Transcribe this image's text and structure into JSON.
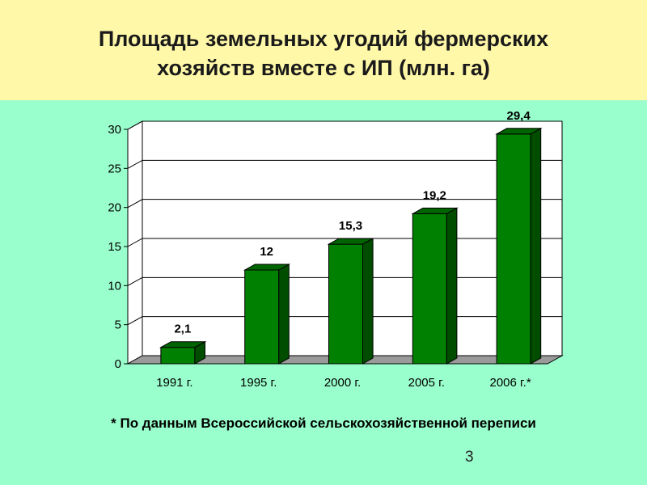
{
  "slide": {
    "title_line1": "Площадь земельных угодий фермерских",
    "title_line2": "хозяйств вместе с ИП (млн. га)",
    "footnote": "* По данным Всероссийской сельскохозяйственной переписи",
    "number": "3"
  },
  "colors": {
    "title_band": "#fff8a8",
    "background": "#99ffcc",
    "bar_front": "#008000",
    "bar_side": "#004d00",
    "bar_top": "#006400",
    "wall": "#ffffff",
    "floor": "#9a9a9a"
  },
  "chart_data": {
    "type": "bar",
    "style": "3d-column",
    "title": "",
    "xlabel": "",
    "ylabel": "",
    "categories": [
      "1991 г.",
      "1995 г.",
      "2000 г.",
      "2005 г.",
      "2006 г.*"
    ],
    "values": [
      2.1,
      12,
      15.3,
      19.2,
      29.4
    ],
    "data_labels": [
      "2,1",
      "12",
      "15,3",
      "19,2",
      "29,4"
    ],
    "ylim": [
      0,
      30
    ],
    "yticks": [
      0,
      5,
      10,
      15,
      20,
      25,
      30
    ],
    "grid": true,
    "legend": "none"
  }
}
